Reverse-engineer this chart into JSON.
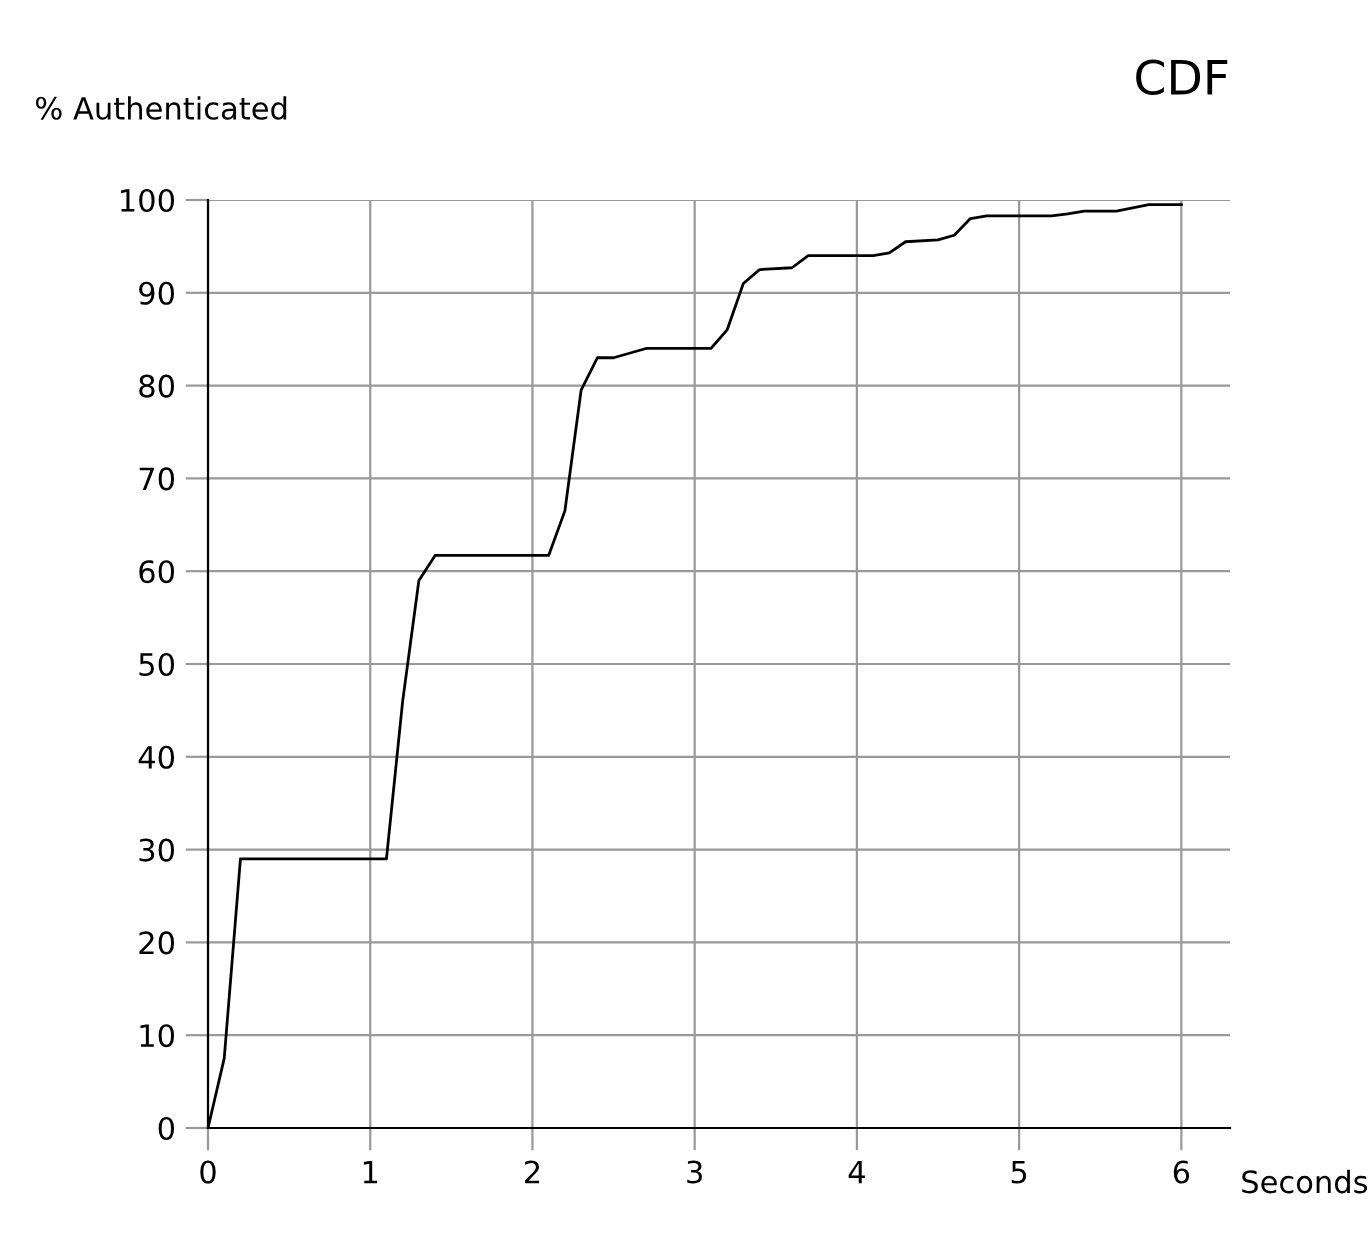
{
  "chart_data": {
    "type": "line",
    "title": "CDF",
    "xlabel": "Seconds",
    "ylabel": "% Authenticated",
    "series": [
      {
        "color": "#000000",
        "x": [
          0,
          0.1,
          0.2,
          1.1,
          1.2,
          1.3,
          1.4,
          2.1,
          2.2,
          2.3,
          2.4,
          2.5,
          2.7,
          3.1,
          3.2,
          3.3,
          3.4,
          3.6,
          3.7,
          4.1,
          4.2,
          4.3,
          4.5,
          4.6,
          4.7,
          4.8,
          5.2,
          5.3,
          5.4,
          5.6,
          5.8,
          6
        ],
        "values": [
          0,
          7.5,
          29,
          29,
          46,
          59,
          61.7,
          61.7,
          66.5,
          79.5,
          83,
          83,
          84,
          84,
          86,
          91,
          92.5,
          92.7,
          94,
          94,
          94.3,
          95.5,
          95.7,
          96.2,
          98,
          98.3,
          98.3,
          98.5,
          98.8,
          98.8,
          99.5,
          99.5
        ]
      }
    ],
    "xlim": [
      0,
      6.3
    ],
    "ylim": [
      0,
      100
    ],
    "xticks": [
      0,
      1,
      2,
      3,
      4,
      5,
      6
    ],
    "yticks": [
      0,
      10,
      20,
      30,
      40,
      50,
      60,
      70,
      80,
      90,
      100
    ],
    "grid": true,
    "marker": "none",
    "line_style": "solid",
    "legend": false
  }
}
